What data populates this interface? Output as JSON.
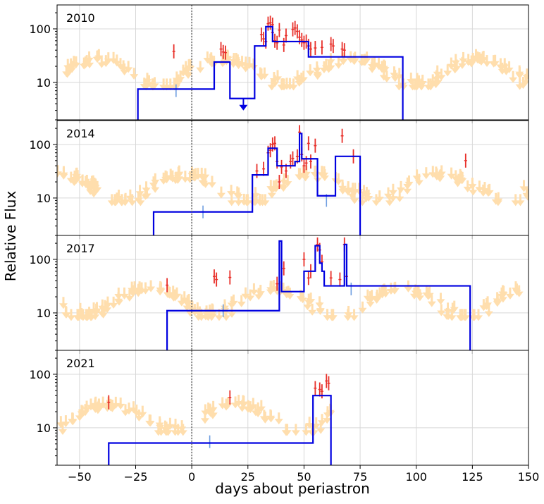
{
  "chart_data": {
    "type": "scatter",
    "xlabel": "days about periastron",
    "ylabel": "Relative Flux",
    "xlim": [
      -60,
      150
    ],
    "ylim": [
      2,
      280
    ],
    "y_scale": "log",
    "x_ticks": [
      -50,
      -25,
      0,
      25,
      50,
      75,
      100,
      125,
      150
    ],
    "y_ticks": [
      10,
      100
    ],
    "grid": true,
    "colors": {
      "upper_limits": "#ffdead",
      "detections": "#e8302a",
      "low_signif": "#6f9ee0",
      "blocks": "#0000e0",
      "periastron": "#666666"
    },
    "panels": [
      {
        "label": "2010",
        "blocks": [
          [
            -24,
            94,
            94
          ],
          [
            -24,
            -24,
            7.5
          ],
          [
            10,
            10,
            24
          ],
          [
            17,
            17,
            5
          ],
          [
            28,
            28,
            48
          ],
          [
            33,
            33,
            110
          ],
          [
            36,
            36,
            58
          ],
          [
            52,
            52,
            30
          ],
          [
            94,
            94,
            30
          ]
        ],
        "blocks_list": [
          [
            -24,
            10,
            7.5
          ],
          [
            10,
            17,
            24
          ],
          [
            17,
            28,
            5
          ],
          [
            28,
            33,
            48
          ],
          [
            33,
            36,
            110
          ],
          [
            36,
            52,
            58
          ],
          [
            52,
            94,
            30
          ]
        ],
        "detections": [
          [
            -8,
            38
          ],
          [
            13,
            42
          ],
          [
            14,
            37
          ],
          [
            15,
            36
          ],
          [
            31,
            78
          ],
          [
            32,
            65
          ],
          [
            33,
            58
          ],
          [
            34,
            125
          ],
          [
            35,
            130
          ],
          [
            36,
            120
          ],
          [
            36,
            85
          ],
          [
            37,
            60
          ],
          [
            38,
            55
          ],
          [
            39,
            95
          ],
          [
            41,
            50
          ],
          [
            42,
            75
          ],
          [
            45,
            98
          ],
          [
            46,
            104
          ],
          [
            47,
            90
          ],
          [
            48,
            70
          ],
          [
            49,
            62
          ],
          [
            50,
            55
          ],
          [
            51,
            58
          ],
          [
            52,
            48
          ],
          [
            53,
            42
          ],
          [
            55,
            44
          ],
          [
            58,
            45
          ],
          [
            62,
            52
          ],
          [
            63,
            48
          ],
          [
            67,
            42
          ],
          [
            68,
            40
          ]
        ],
        "low_signif": [
          [
            -7,
            7
          ]
        ],
        "block_upper_limit": [
          23,
          3.5
        ],
        "upper_limit_seed": 11
      },
      {
        "label": "2014",
        "blocks_list": [
          [
            -17,
            27,
            5.5
          ],
          [
            27,
            34,
            27
          ],
          [
            34,
            38,
            85
          ],
          [
            38,
            46,
            40
          ],
          [
            46,
            48,
            48
          ],
          [
            48,
            49,
            160
          ],
          [
            49,
            56,
            54
          ],
          [
            56,
            64,
            11
          ],
          [
            64,
            75,
            60
          ]
        ],
        "detections": [
          [
            29,
            32
          ],
          [
            32,
            35
          ],
          [
            34,
            70
          ],
          [
            35,
            78
          ],
          [
            36,
            100
          ],
          [
            37,
            105
          ],
          [
            38,
            48
          ],
          [
            39,
            20
          ],
          [
            40,
            38
          ],
          [
            42,
            32
          ],
          [
            44,
            48
          ],
          [
            45,
            55
          ],
          [
            47,
            60
          ],
          [
            48,
            170
          ],
          [
            49,
            65
          ],
          [
            50,
            40
          ],
          [
            51,
            45
          ],
          [
            52,
            105
          ],
          [
            53,
            48
          ],
          [
            55,
            95
          ],
          [
            67,
            145
          ],
          [
            72,
            60
          ],
          [
            122,
            50
          ]
        ],
        "low_signif": [
          [
            5,
            5.5
          ],
          [
            60,
            9
          ]
        ],
        "upper_limit_seed": 23
      },
      {
        "label": "2017",
        "blocks_list": [
          [
            -11,
            39,
            11
          ],
          [
            39,
            40,
            220
          ],
          [
            40,
            50,
            25
          ],
          [
            50,
            55,
            60
          ],
          [
            55,
            57,
            180
          ],
          [
            57,
            58,
            85
          ],
          [
            58,
            59,
            60
          ],
          [
            59,
            68,
            32
          ],
          [
            68,
            69,
            190
          ],
          [
            69,
            124,
            32
          ]
        ],
        "detections": [
          [
            -11,
            33
          ],
          [
            10,
            48
          ],
          [
            11,
            42
          ],
          [
            17,
            46
          ],
          [
            38,
            35
          ],
          [
            41,
            68
          ],
          [
            50,
            100
          ],
          [
            52,
            45
          ],
          [
            53,
            60
          ],
          [
            56,
            190
          ],
          [
            57,
            150
          ],
          [
            58,
            90
          ],
          [
            62,
            45
          ],
          [
            66,
            42
          ],
          [
            68,
            190
          ],
          [
            69,
            48
          ]
        ],
        "low_signif": [
          [
            14,
            11
          ],
          [
            71,
            28
          ]
        ],
        "upper_limit_seed": 37
      },
      {
        "label": "2021",
        "blocks_list": [
          [
            -37,
            54,
            5.2
          ],
          [
            54,
            62,
            40
          ]
        ],
        "detections": [
          [
            -37,
            30
          ],
          [
            17,
            37
          ],
          [
            55,
            55
          ],
          [
            57,
            52
          ],
          [
            58,
            48
          ],
          [
            60,
            75
          ],
          [
            61,
            68
          ]
        ],
        "low_signif": [
          [
            8,
            5.5
          ]
        ],
        "upper_limit_seed": 53
      }
    ]
  }
}
